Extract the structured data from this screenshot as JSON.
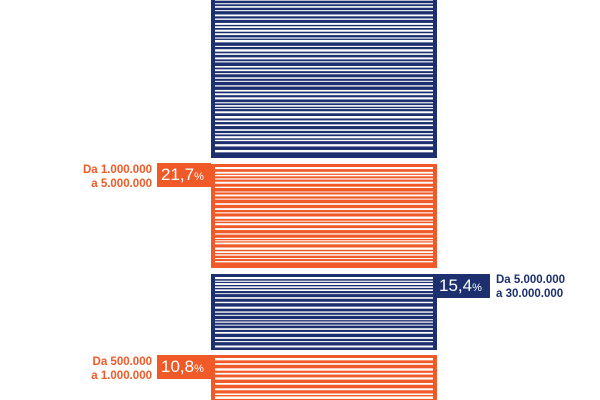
{
  "colors": {
    "navy": "#1c2f6e",
    "orange": "#f05a28",
    "background": "#ffffff"
  },
  "chart_data": {
    "type": "bar",
    "title": "",
    "xlabel": "",
    "ylabel": "",
    "orientation": "vertical-stack",
    "categories": [
      "Da 1.000.000 a 5.000.000",
      "Da 5.000.000 a 30.000.000",
      "Da 500.000 a 1.000.000"
    ],
    "values": [
      21.7,
      15.4,
      10.8
    ],
    "unit": "%",
    "labels": [
      {
        "line1": "Da 1.000.000",
        "line2": "a 5.000.000",
        "value_text": "21,7",
        "pct": "%",
        "color": "orange",
        "side": "left"
      },
      {
        "line1": "Da 5.000.000",
        "line2": "a 30.000.000",
        "value_text": "15,4",
        "pct": "%",
        "color": "navy",
        "side": "right"
      },
      {
        "line1": "Da 500.000",
        "line2": "a 1.000.000",
        "value_text": "10,8",
        "pct": "%",
        "color": "orange",
        "side": "left"
      }
    ]
  }
}
